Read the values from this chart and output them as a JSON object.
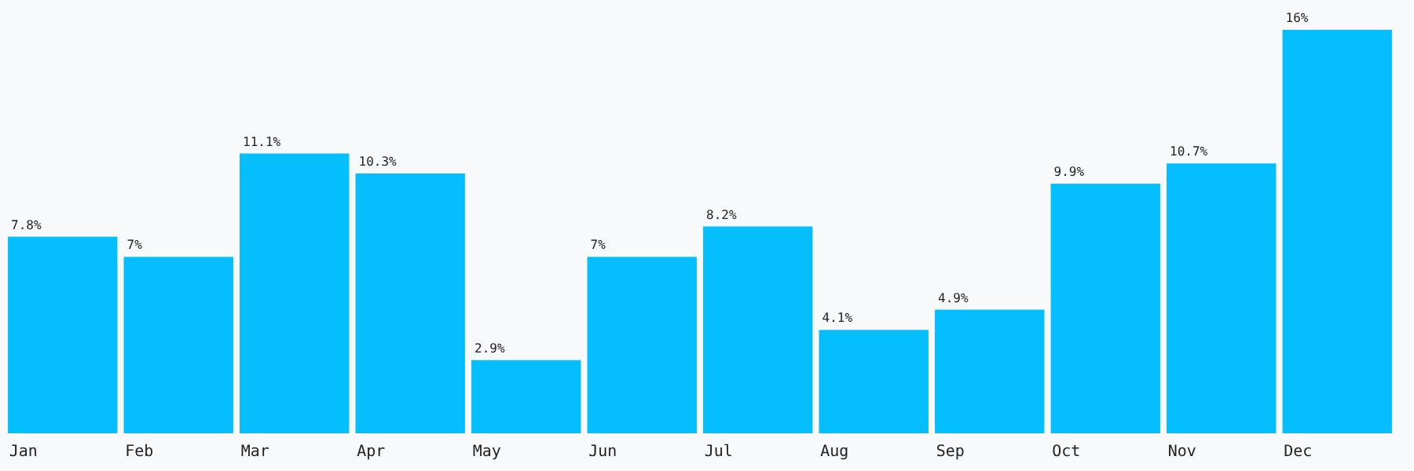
{
  "chart_data": {
    "type": "bar",
    "categories": [
      "Jan",
      "Feb",
      "Mar",
      "Apr",
      "May",
      "Jun",
      "Jul",
      "Aug",
      "Sep",
      "Oct",
      "Nov",
      "Dec"
    ],
    "values": [
      7.8,
      7,
      11.1,
      10.3,
      2.9,
      7,
      8.2,
      4.1,
      4.9,
      9.9,
      10.7,
      16
    ],
    "value_labels": [
      "7.8%",
      "7%",
      "11.1%",
      "10.3%",
      "2.9%",
      "7%",
      "8.2%",
      "4.1%",
      "4.9%",
      "9.9%",
      "10.7%",
      "16%"
    ],
    "color": "#04befe",
    "tick_labels": "x",
    "legend": false,
    "grid": false
  }
}
